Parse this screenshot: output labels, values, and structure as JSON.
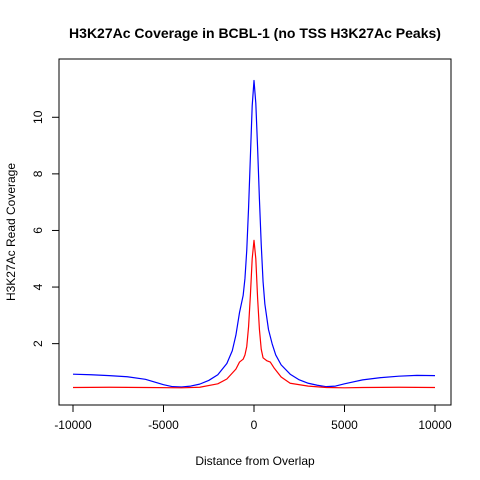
{
  "chart_data": {
    "type": "line",
    "title": "H3K27Ac Coverage in BCBL-1 (no TSS H3K27Ac Peaks)",
    "xlabel": "Distance from Overlap",
    "ylabel": "H3K27Ac Read Coverage",
    "xlim": [
      -10000,
      10000
    ],
    "ylim": [
      0.15,
      11.6
    ],
    "xticks": [
      -10000,
      -5000,
      0,
      5000,
      10000
    ],
    "yticks": [
      2,
      4,
      6,
      8,
      10
    ],
    "grid": false,
    "legend": "none",
    "series": [
      {
        "color": "#0000ff",
        "points": [
          [
            -10000,
            0.92
          ],
          [
            -9000,
            0.9
          ],
          [
            -8000,
            0.87
          ],
          [
            -7000,
            0.83
          ],
          [
            -6000,
            0.74
          ],
          [
            -5000,
            0.55
          ],
          [
            -4500,
            0.48
          ],
          [
            -4000,
            0.47
          ],
          [
            -3500,
            0.5
          ],
          [
            -3000,
            0.57
          ],
          [
            -2500,
            0.7
          ],
          [
            -2000,
            0.9
          ],
          [
            -1500,
            1.3
          ],
          [
            -1200,
            1.75
          ],
          [
            -1000,
            2.3
          ],
          [
            -800,
            3.1
          ],
          [
            -600,
            3.7
          ],
          [
            -500,
            4.3
          ],
          [
            -400,
            5.3
          ],
          [
            -300,
            6.8
          ],
          [
            -200,
            8.6
          ],
          [
            -100,
            10.4
          ],
          [
            0,
            11.3
          ],
          [
            100,
            10.5
          ],
          [
            200,
            8.9
          ],
          [
            300,
            7.1
          ],
          [
            400,
            5.5
          ],
          [
            500,
            4.2
          ],
          [
            600,
            3.4
          ],
          [
            800,
            2.5
          ],
          [
            1000,
            2.0
          ],
          [
            1200,
            1.6
          ],
          [
            1500,
            1.25
          ],
          [
            2000,
            0.92
          ],
          [
            2500,
            0.72
          ],
          [
            3000,
            0.6
          ],
          [
            3500,
            0.53
          ],
          [
            4000,
            0.48
          ],
          [
            4500,
            0.5
          ],
          [
            5000,
            0.58
          ],
          [
            6000,
            0.72
          ],
          [
            7000,
            0.8
          ],
          [
            8000,
            0.85
          ],
          [
            9000,
            0.88
          ],
          [
            10000,
            0.87
          ]
        ]
      },
      {
        "color": "#ff0000",
        "points": [
          [
            -10000,
            0.45
          ],
          [
            -8000,
            0.46
          ],
          [
            -6000,
            0.45
          ],
          [
            -4000,
            0.44
          ],
          [
            -3000,
            0.46
          ],
          [
            -2000,
            0.58
          ],
          [
            -1500,
            0.75
          ],
          [
            -1000,
            1.1
          ],
          [
            -800,
            1.35
          ],
          [
            -600,
            1.45
          ],
          [
            -500,
            1.6
          ],
          [
            -400,
            1.9
          ],
          [
            -300,
            2.6
          ],
          [
            -200,
            3.7
          ],
          [
            -100,
            5.0
          ],
          [
            0,
            5.65
          ],
          [
            100,
            5.0
          ],
          [
            200,
            3.6
          ],
          [
            300,
            2.5
          ],
          [
            400,
            1.8
          ],
          [
            500,
            1.5
          ],
          [
            700,
            1.4
          ],
          [
            900,
            1.35
          ],
          [
            1100,
            1.15
          ],
          [
            1500,
            0.82
          ],
          [
            2000,
            0.6
          ],
          [
            3000,
            0.5
          ],
          [
            4000,
            0.45
          ],
          [
            5000,
            0.44
          ],
          [
            6000,
            0.45
          ],
          [
            8000,
            0.46
          ],
          [
            10000,
            0.45
          ]
        ]
      }
    ]
  }
}
